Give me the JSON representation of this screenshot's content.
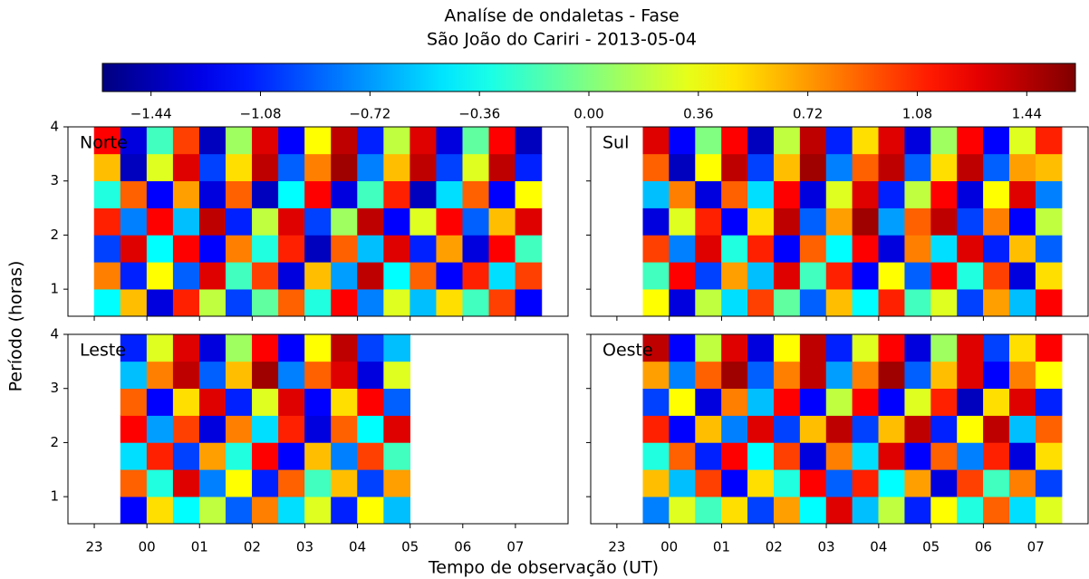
{
  "chart_data": {
    "type": "heatmap",
    "title": "Analíse de ondaletas - Fase",
    "subtitle": "São João do Cariri - 2013-05-04",
    "xlabel": "Tempo de observação (UT)",
    "ylabel": "Período (horas)",
    "colormap": "jet",
    "clim": [
      -1.6,
      1.6
    ],
    "cticks": [
      {
        "value": -1.44,
        "label": "−1.44"
      },
      {
        "value": -1.08,
        "label": "−1.08"
      },
      {
        "value": -0.72,
        "label": "−0.72"
      },
      {
        "value": -0.36,
        "label": "−0.36"
      },
      {
        "value": 0,
        "label": "0.00"
      },
      0.36,
      0.72,
      1.08,
      1.44
    ],
    "xlim": [
      22.5,
      32
    ],
    "xticks": [
      23,
      {
        "value": 24,
        "label": "00"
      },
      {
        "value": 25,
        "label": "01"
      },
      {
        "value": 26,
        "label": "02"
      },
      {
        "value": 27,
        "label": "03"
      },
      {
        "value": 28,
        "label": "04"
      },
      {
        "value": 29,
        "label": "05"
      },
      {
        "value": 30,
        "label": "06"
      },
      {
        "value": 31,
        "label": "07"
      }
    ],
    "ylim": [
      0.5,
      4
    ],
    "yticks": [
      1,
      2,
      3,
      4
    ],
    "panels": [
      {
        "label": "Norte",
        "x": [
          23.25,
          23.75,
          24.25,
          24.75,
          25.25,
          25.75,
          26.25,
          26.75,
          27.25,
          27.75,
          28.25,
          28.75,
          29.25,
          29.75,
          30.25,
          30.75,
          31.25
        ],
        "y": [
          0.75,
          1.25,
          1.75,
          2.25,
          2.75,
          3.25,
          3.75
        ],
        "z": [
          [
            -0.4,
            0.6,
            -1.3,
            1.1,
            0.2,
            -1.0,
            -0.1,
            0.9,
            -0.3,
            1.2,
            -0.8,
            0.3,
            -0.6,
            0.5,
            -0.2,
            1.0,
            -1.2
          ],
          [
            0.8,
            -1.1,
            0.4,
            -0.9,
            1.3,
            -0.2,
            1.0,
            -1.3,
            0.6,
            -0.7,
            1.4,
            -0.4,
            0.9,
            -1.2,
            1.1,
            -0.5,
            1.0
          ],
          [
            -1.0,
            1.3,
            -0.4,
            1.2,
            -1.2,
            0.8,
            -0.3,
            1.1,
            -1.4,
            0.9,
            -0.6,
            1.3,
            -1.1,
            0.7,
            -1.3,
            1.2,
            -0.2
          ],
          [
            1.1,
            -0.8,
            1.2,
            -0.6,
            1.4,
            -1.1,
            0.2,
            1.3,
            -1.0,
            0.1,
            1.4,
            -1.2,
            0.3,
            1.2,
            -0.9,
            0.6,
            1.3
          ],
          [
            -0.3,
            0.9,
            -1.2,
            0.7,
            -1.3,
            0.9,
            -1.4,
            -0.4,
            1.2,
            -1.3,
            -0.2,
            1.1,
            -1.4,
            -0.5,
            0.9,
            -1.2,
            0.4
          ],
          [
            0.6,
            -1.4,
            0.3,
            1.3,
            -1.0,
            0.5,
            1.4,
            -0.9,
            0.8,
            1.5,
            -0.8,
            0.6,
            1.4,
            -1.0,
            0.3,
            1.4,
            -1.1
          ],
          [
            1.2,
            -1.3,
            -0.2,
            1.0,
            -1.4,
            0.1,
            1.3,
            -1.2,
            0.4,
            1.4,
            -1.1,
            0.2,
            1.3,
            -1.3,
            -0.1,
            1.2,
            -1.4
          ]
        ]
      },
      {
        "label": "Sul",
        "x": [
          23.75,
          24.25,
          24.75,
          25.25,
          25.75,
          26.25,
          26.75,
          27.25,
          27.75,
          28.25,
          28.75,
          29.25,
          29.75,
          30.25,
          30.75,
          31.25
        ],
        "y": [
          0.75,
          1.25,
          1.75,
          2.25,
          2.75,
          3.25,
          3.75
        ],
        "z": [
          [
            0.4,
            -1.3,
            0.2,
            -0.5,
            1.0,
            -0.1,
            -0.9,
            0.6,
            -0.4,
            1.1,
            -0.2,
            0.3,
            -1.0,
            0.7,
            -0.6,
            1.2
          ],
          [
            -0.2,
            1.2,
            -1.0,
            0.7,
            -0.6,
            1.3,
            -0.2,
            1.1,
            -1.2,
            0.4,
            -0.9,
            1.2,
            -0.3,
            1.0,
            -1.3,
            0.5
          ],
          [
            1.0,
            -0.8,
            1.3,
            -0.3,
            1.1,
            -1.2,
            0.9,
            -0.4,
            1.2,
            -1.3,
            0.8,
            -0.5,
            1.3,
            -1.1,
            0.6,
            -0.9
          ],
          [
            -1.3,
            0.3,
            1.1,
            -1.2,
            0.5,
            1.4,
            -0.9,
            0.7,
            1.5,
            -0.7,
            0.9,
            1.4,
            -1.0,
            0.8,
            -1.2,
            0.2
          ],
          [
            -0.6,
            0.8,
            -1.3,
            0.9,
            -0.5,
            1.2,
            -1.3,
            0.3,
            1.3,
            -1.1,
            0.2,
            1.2,
            -1.3,
            0.4,
            1.3,
            -0.8
          ],
          [
            0.9,
            -1.4,
            0.4,
            1.4,
            -1.0,
            0.6,
            1.5,
            -0.8,
            0.9,
            1.4,
            -0.9,
            0.5,
            1.4,
            -0.9,
            0.7,
            0.6
          ],
          [
            1.3,
            -1.2,
            0.0,
            1.2,
            -1.4,
            0.2,
            1.4,
            -1.1,
            0.5,
            1.3,
            -1.3,
            0.1,
            1.2,
            -1.2,
            0.3,
            1.1
          ]
        ]
      },
      {
        "label": "Leste",
        "x": [
          23.75,
          24.25,
          24.75,
          25.25,
          25.75,
          26.25,
          26.75,
          27.25,
          27.75,
          28.25,
          28.75
        ],
        "y": [
          0.75,
          1.25,
          1.75,
          2.25,
          2.75,
          3.25,
          3.75
        ],
        "z": [
          [
            -1.2,
            0.5,
            -0.4,
            0.2,
            -0.9,
            0.8,
            -0.5,
            0.3,
            -1.1,
            0.4,
            -0.6
          ],
          [
            0.9,
            -0.3,
            1.3,
            -0.8,
            0.4,
            -1.1,
            0.9,
            -0.2,
            0.6,
            -1.0,
            0.7
          ],
          [
            -0.5,
            1.1,
            -1.0,
            0.7,
            -0.3,
            1.2,
            -1.2,
            0.6,
            -0.8,
            1.0,
            -0.2
          ],
          [
            1.2,
            -0.7,
            1.0,
            -1.3,
            0.8,
            -0.5,
            1.1,
            -1.3,
            0.9,
            -0.4,
            1.3
          ],
          [
            0.9,
            -1.2,
            0.5,
            1.3,
            -1.1,
            0.3,
            1.3,
            -1.2,
            0.5,
            1.2,
            -0.9
          ],
          [
            -0.6,
            0.8,
            1.4,
            -0.9,
            0.6,
            1.5,
            -0.8,
            0.9,
            1.3,
            -1.3,
            0.3
          ],
          [
            -1.1,
            0.3,
            1.3,
            -1.3,
            0.1,
            1.2,
            -1.2,
            0.4,
            1.4,
            -1.0,
            -0.6
          ]
        ]
      },
      {
        "label": "Oeste",
        "x": [
          23.75,
          24.25,
          24.75,
          25.25,
          25.75,
          26.25,
          26.75,
          27.25,
          27.75,
          28.25,
          28.75,
          29.25,
          29.75,
          30.25,
          30.75,
          31.25
        ],
        "y": [
          0.75,
          1.25,
          1.75,
          2.25,
          2.75,
          3.25,
          3.75
        ],
        "z": [
          [
            -0.8,
            0.3,
            -0.2,
            0.5,
            -1.0,
            0.7,
            -0.4,
            1.3,
            -0.6,
            0.2,
            -1.1,
            0.4,
            -0.3,
            0.9,
            -0.5,
            0.3
          ],
          [
            0.6,
            -0.6,
            1.0,
            -1.2,
            0.5,
            -0.3,
            1.2,
            -0.9,
            1.1,
            -0.4,
            0.7,
            -1.3,
            1.0,
            -0.2,
            0.8,
            -1.0
          ],
          [
            -0.3,
            0.9,
            -1.1,
            1.2,
            -0.4,
            1.0,
            -1.3,
            0.8,
            -0.5,
            1.3,
            -1.2,
            0.9,
            -0.8,
            1.1,
            -1.3,
            0.5
          ],
          [
            1.1,
            -1.2,
            0.6,
            -0.8,
            1.3,
            -1.0,
            0.6,
            1.4,
            -1.0,
            0.6,
            1.4,
            -1.1,
            0.4,
            1.4,
            -0.6,
            0.9
          ],
          [
            -1.0,
            0.4,
            -1.3,
            0.8,
            -0.6,
            1.2,
            -1.2,
            0.2,
            1.2,
            -1.2,
            0.3,
            1.1,
            -1.4,
            0.5,
            1.3,
            -1.1
          ],
          [
            0.7,
            -0.8,
            0.9,
            1.5,
            -0.9,
            0.8,
            1.4,
            -0.7,
            0.8,
            1.5,
            -0.9,
            0.6,
            1.3,
            -1.2,
            0.8,
            0.4
          ],
          [
            1.4,
            -1.2,
            0.2,
            1.3,
            -1.3,
            0.4,
            1.4,
            -1.1,
            0.3,
            1.2,
            -1.3,
            0.1,
            1.3,
            -1.0,
            0.5,
            1.2
          ]
        ]
      }
    ]
  }
}
